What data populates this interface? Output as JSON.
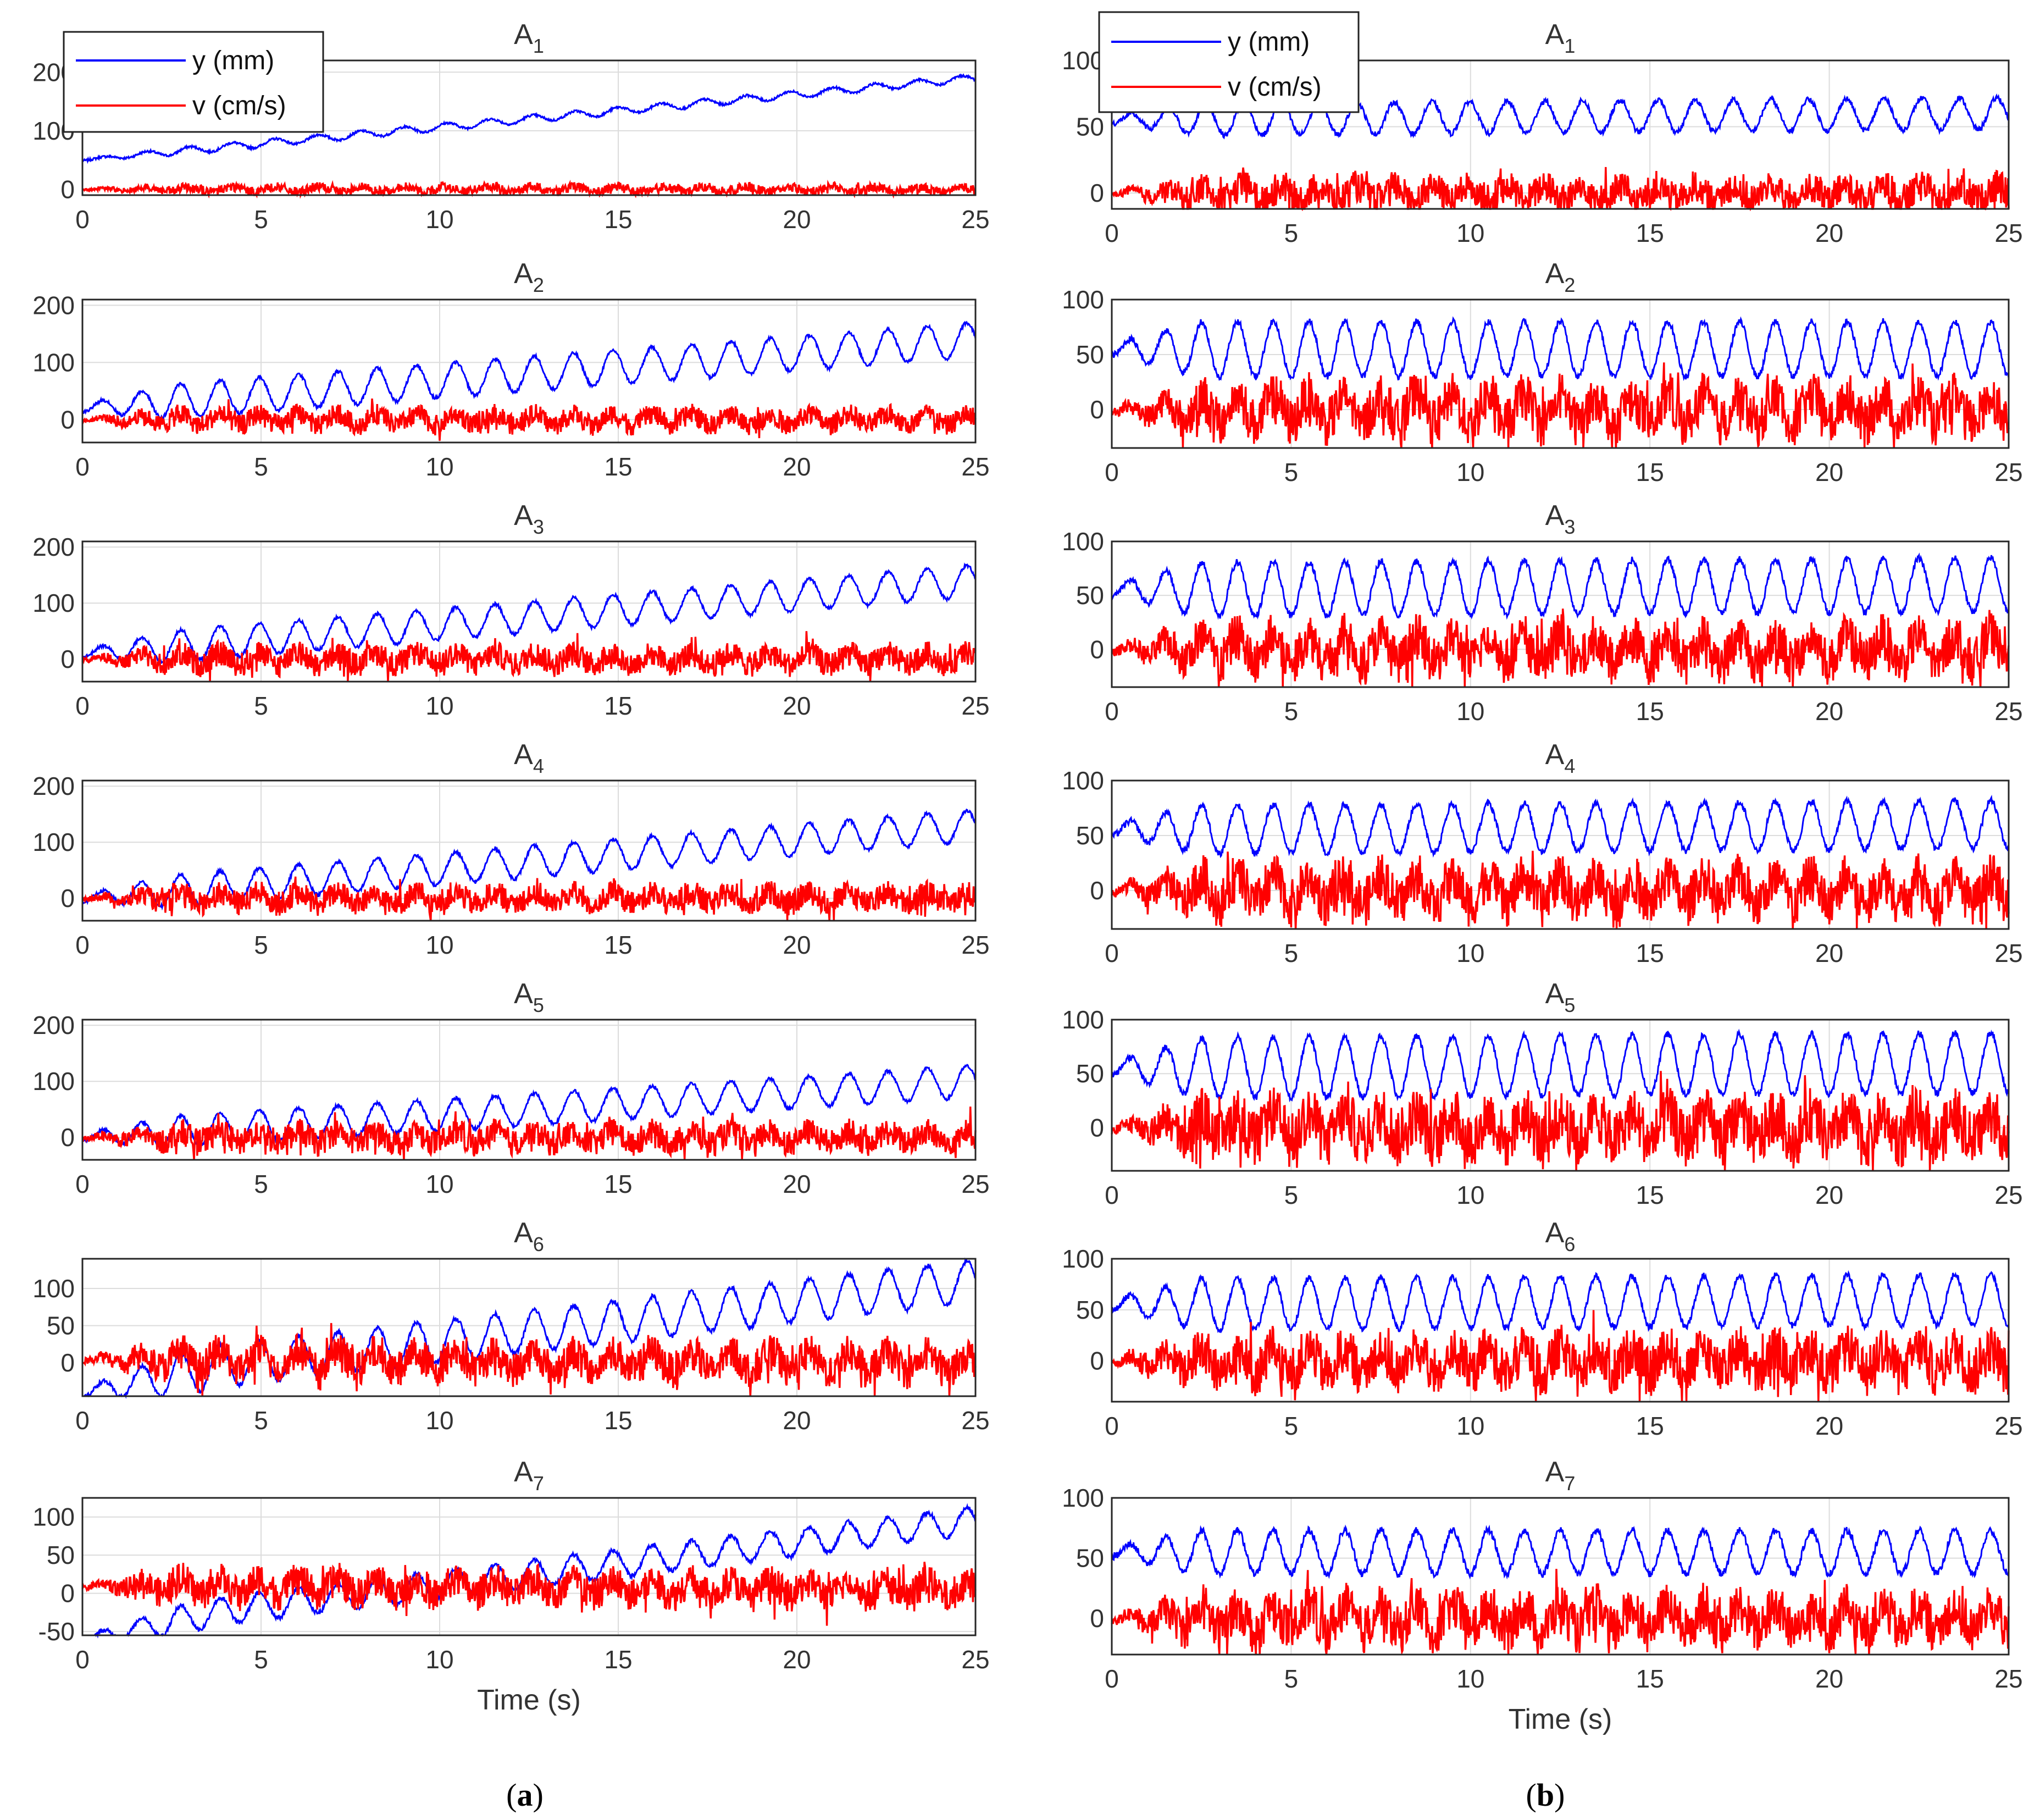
{
  "chart_data": [
    {
      "type": "line",
      "figure": "a",
      "title": "A",
      "title_sub": "1",
      "x_range": [
        0,
        25
      ],
      "xticks": [
        0,
        5,
        10,
        15,
        20,
        25
      ],
      "ylim": [
        -10,
        220
      ],
      "yticks": [
        0,
        100,
        200
      ],
      "ytick_labels": [
        "0",
        "100",
        "200"
      ],
      "grid": true,
      "xlabel": "",
      "legend": true,
      "series": [
        {
          "name": "y (mm)",
          "color": "#0000ff",
          "start": 50,
          "end": 190,
          "amplitude": 6,
          "period": 1.2,
          "noise": 2,
          "early": false
        },
        {
          "name": "v (cm/s)",
          "color": "#ff0000",
          "start": 0,
          "end": 0,
          "amplitude": 4,
          "period": 1.2,
          "noise": 8,
          "early": false
        }
      ]
    },
    {
      "type": "line",
      "figure": "b",
      "title": "A",
      "title_sub": "1",
      "x_range": [
        0,
        25
      ],
      "xticks": [
        0,
        5,
        10,
        15,
        20,
        25
      ],
      "ylim": [
        -12,
        100
      ],
      "yticks": [
        0,
        50,
        100
      ],
      "ytick_labels": [
        "0",
        "50",
        "100"
      ],
      "grid": true,
      "xlabel": "",
      "legend": true,
      "series": [
        {
          "name": "y (mm)",
          "color": "#0000ff",
          "start": 55,
          "end": 60,
          "amplitude": 12,
          "period": 1.05,
          "noise": 2,
          "early": false
        },
        {
          "name": "v (cm/s)",
          "color": "#ff0000",
          "start": 0,
          "end": 0,
          "amplitude": 5,
          "period": 1.05,
          "noise": 12,
          "early": false
        }
      ]
    },
    {
      "type": "line",
      "figure": "a",
      "title": "A",
      "title_sub": "2",
      "x_range": [
        0,
        25
      ],
      "xticks": [
        0,
        5,
        10,
        15,
        20,
        25
      ],
      "ylim": [
        -40,
        210
      ],
      "yticks": [
        0,
        100,
        200
      ],
      "ytick_labels": [
        "0",
        "100",
        "200"
      ],
      "grid": true,
      "xlabel": "",
      "legend": false,
      "series": [
        {
          "name": "y (mm)",
          "color": "#0000ff",
          "start": 20,
          "end": 140,
          "amplitude": 30,
          "period": 1.1,
          "noise": 3,
          "early": false
        },
        {
          "name": "v (cm/s)",
          "color": "#ff0000",
          "start": 0,
          "end": 0,
          "amplitude": 10,
          "period": 1.1,
          "noise": 18,
          "early": false
        }
      ]
    },
    {
      "type": "line",
      "figure": "b",
      "title": "A",
      "title_sub": "2",
      "x_range": [
        0,
        25
      ],
      "xticks": [
        0,
        5,
        10,
        15,
        20,
        25
      ],
      "ylim": [
        -35,
        100
      ],
      "yticks": [
        0,
        50,
        100
      ],
      "ytick_labels": [
        "0",
        "50",
        "100"
      ],
      "grid": true,
      "xlabel": "",
      "legend": false,
      "series": [
        {
          "name": "y (mm)",
          "color": "#0000ff",
          "start": 55,
          "end": 55,
          "amplitude": 25,
          "period": 1.0,
          "noise": 3,
          "early": false
        },
        {
          "name": "v (cm/s)",
          "color": "#ff0000",
          "start": 0,
          "end": 0,
          "amplitude": 12,
          "period": 1.0,
          "noise": 22,
          "early": false
        }
      ]
    },
    {
      "type": "line",
      "figure": "a",
      "title": "A",
      "title_sub": "3",
      "x_range": [
        0,
        25
      ],
      "xticks": [
        0,
        5,
        10,
        15,
        20,
        25
      ],
      "ylim": [
        -40,
        210
      ],
      "yticks": [
        0,
        100,
        200
      ],
      "ytick_labels": [
        "0",
        "100",
        "200"
      ],
      "grid": true,
      "xlabel": "",
      "legend": false,
      "series": [
        {
          "name": "y (mm)",
          "color": "#0000ff",
          "start": 10,
          "end": 140,
          "amplitude": 28,
          "period": 1.1,
          "noise": 3,
          "early": false
        },
        {
          "name": "v (cm/s)",
          "color": "#ff0000",
          "start": 0,
          "end": 0,
          "amplitude": 10,
          "period": 1.1,
          "noise": 22,
          "early": false
        }
      ]
    },
    {
      "type": "line",
      "figure": "b",
      "title": "A",
      "title_sub": "3",
      "x_range": [
        0,
        25
      ],
      "xticks": [
        0,
        5,
        10,
        15,
        20,
        25
      ],
      "ylim": [
        -35,
        100
      ],
      "yticks": [
        0,
        50,
        100
      ],
      "ytick_labels": [
        "0",
        "50",
        "100"
      ],
      "grid": true,
      "xlabel": "",
      "legend": false,
      "series": [
        {
          "name": "y (mm)",
          "color": "#0000ff",
          "start": 55,
          "end": 60,
          "amplitude": 25,
          "period": 1.0,
          "noise": 3,
          "early": false
        },
        {
          "name": "v (cm/s)",
          "color": "#ff0000",
          "start": 0,
          "end": 0,
          "amplitude": 12,
          "period": 1.0,
          "noise": 22,
          "early": false
        }
      ]
    },
    {
      "type": "line",
      "figure": "a",
      "title": "A",
      "title_sub": "4",
      "x_range": [
        0,
        25
      ],
      "xticks": [
        0,
        5,
        10,
        15,
        20,
        25
      ],
      "ylim": [
        -40,
        210
      ],
      "yticks": [
        0,
        100,
        200
      ],
      "ytick_labels": [
        "0",
        "100",
        "200"
      ],
      "grid": true,
      "xlabel": "",
      "legend": false,
      "series": [
        {
          "name": "y (mm)",
          "color": "#0000ff",
          "start": 0,
          "end": 130,
          "amplitude": 28,
          "period": 1.1,
          "noise": 3,
          "early": false
        },
        {
          "name": "v (cm/s)",
          "color": "#ff0000",
          "start": 0,
          "end": 0,
          "amplitude": 10,
          "period": 1.1,
          "noise": 22,
          "early": false
        }
      ]
    },
    {
      "type": "line",
      "figure": "b",
      "title": "A",
      "title_sub": "4",
      "x_range": [
        0,
        25
      ],
      "xticks": [
        0,
        5,
        10,
        15,
        20,
        25
      ],
      "ylim": [
        -35,
        100
      ],
      "yticks": [
        0,
        50,
        100
      ],
      "ytick_labels": [
        "0",
        "50",
        "100"
      ],
      "grid": true,
      "xlabel": "",
      "legend": false,
      "series": [
        {
          "name": "y (mm)",
          "color": "#0000ff",
          "start": 55,
          "end": 60,
          "amplitude": 22,
          "period": 1.0,
          "noise": 3,
          "early": false
        },
        {
          "name": "v (cm/s)",
          "color": "#ff0000",
          "start": 0,
          "end": 0,
          "amplitude": 12,
          "period": 1.0,
          "noise": 22,
          "early": false
        }
      ]
    },
    {
      "type": "line",
      "figure": "a",
      "title": "A",
      "title_sub": "5",
      "x_range": [
        0,
        25
      ],
      "xticks": [
        0,
        5,
        10,
        15,
        20,
        25
      ],
      "ylim": [
        -40,
        210
      ],
      "yticks": [
        0,
        100,
        200
      ],
      "ytick_labels": [
        "0",
        "100",
        "200"
      ],
      "grid": true,
      "xlabel": "",
      "legend": false,
      "series": [
        {
          "name": "y (mm)",
          "color": "#0000ff",
          "start": 0,
          "end": 100,
          "amplitude": 28,
          "period": 1.1,
          "noise": 3,
          "early": false
        },
        {
          "name": "v (cm/s)",
          "color": "#ff0000",
          "start": 0,
          "end": 0,
          "amplitude": 10,
          "period": 1.1,
          "noise": 24,
          "early": false
        }
      ]
    },
    {
      "type": "line",
      "figure": "b",
      "title": "A",
      "title_sub": "5",
      "x_range": [
        0,
        25
      ],
      "xticks": [
        0,
        5,
        10,
        15,
        20,
        25
      ],
      "ylim": [
        -40,
        100
      ],
      "yticks": [
        0,
        50,
        100
      ],
      "ytick_labels": [
        "0",
        "50",
        "100"
      ],
      "grid": true,
      "xlabel": "",
      "legend": false,
      "series": [
        {
          "name": "y (mm)",
          "color": "#0000ff",
          "start": 55,
          "end": 60,
          "amplitude": 28,
          "period": 1.0,
          "noise": 3,
          "early": false
        },
        {
          "name": "v (cm/s)",
          "color": "#ff0000",
          "start": 0,
          "end": 0,
          "amplitude": 12,
          "period": 1.0,
          "noise": 26,
          "early": false
        }
      ]
    },
    {
      "type": "line",
      "figure": "a",
      "title": "A",
      "title_sub": "6",
      "x_range": [
        0,
        25
      ],
      "xticks": [
        0,
        5,
        10,
        15,
        20,
        25
      ],
      "ylim": [
        -45,
        140
      ],
      "yticks": [
        0,
        50,
        100
      ],
      "ytick_labels": [
        "0",
        "50",
        "100"
      ],
      "grid": true,
      "xlabel": "",
      "legend": false,
      "series": [
        {
          "name": "y (mm)",
          "color": "#0000ff",
          "start": -25,
          "end": 110,
          "amplitude": 28,
          "period": 1.1,
          "noise": 3,
          "early": true
        },
        {
          "name": "v (cm/s)",
          "color": "#ff0000",
          "start": 5,
          "end": 0,
          "amplitude": 12,
          "period": 1.1,
          "noise": 24,
          "early": false
        }
      ]
    },
    {
      "type": "line",
      "figure": "b",
      "title": "A",
      "title_sub": "6",
      "x_range": [
        0,
        25
      ],
      "xticks": [
        0,
        5,
        10,
        15,
        20,
        25
      ],
      "ylim": [
        -40,
        100
      ],
      "yticks": [
        0,
        50,
        100
      ],
      "ytick_labels": [
        "0",
        "50",
        "100"
      ],
      "grid": true,
      "xlabel": "",
      "legend": false,
      "series": [
        {
          "name": "y (mm)",
          "color": "#0000ff",
          "start": 55,
          "end": 60,
          "amplitude": 25,
          "period": 1.0,
          "noise": 3,
          "early": false
        },
        {
          "name": "v (cm/s)",
          "color": "#ff0000",
          "start": 0,
          "end": 0,
          "amplitude": 12,
          "period": 1.0,
          "noise": 24,
          "early": false
        }
      ]
    },
    {
      "type": "line",
      "figure": "a",
      "title": "A",
      "title_sub": "7",
      "x_range": [
        0,
        25
      ],
      "xticks": [
        0,
        5,
        10,
        15,
        20,
        25
      ],
      "ylim": [
        -55,
        125
      ],
      "yticks": [
        -50,
        0,
        50,
        100
      ],
      "ytick_labels": [
        "-50",
        "0",
        "50",
        "100"
      ],
      "grid": true,
      "xlabel": "Time (s)",
      "legend": false,
      "series": [
        {
          "name": "y (mm)",
          "color": "#0000ff",
          "start": -45,
          "end": 95,
          "amplitude": 18,
          "period": 1.1,
          "noise": 3,
          "early": true
        },
        {
          "name": "v (cm/s)",
          "color": "#ff0000",
          "start": 10,
          "end": 5,
          "amplitude": 10,
          "period": 1.1,
          "noise": 22,
          "early": false
        }
      ]
    },
    {
      "type": "line",
      "figure": "b",
      "title": "A",
      "title_sub": "7",
      "x_range": [
        0,
        25
      ],
      "xticks": [
        0,
        5,
        10,
        15,
        20,
        25
      ],
      "ylim": [
        -30,
        100
      ],
      "yticks": [
        0,
        50,
        100
      ],
      "ytick_labels": [
        "0",
        "50",
        "100"
      ],
      "grid": true,
      "xlabel": "Time (s)",
      "legend": false,
      "series": [
        {
          "name": "y (mm)",
          "color": "#0000ff",
          "start": 55,
          "end": 55,
          "amplitude": 18,
          "period": 1.0,
          "noise": 3,
          "early": false
        },
        {
          "name": "v (cm/s)",
          "color": "#ff0000",
          "start": 0,
          "end": 0,
          "amplitude": 10,
          "period": 1.0,
          "noise": 20,
          "early": false
        }
      ]
    }
  ],
  "captions": {
    "a": {
      "open": "(",
      "letter": "a",
      "close": ")"
    },
    "b": {
      "open": "(",
      "letter": "b",
      "close": ")"
    }
  },
  "legend": {
    "y_label": "y (mm)",
    "v_label": "v (cm/s)"
  }
}
